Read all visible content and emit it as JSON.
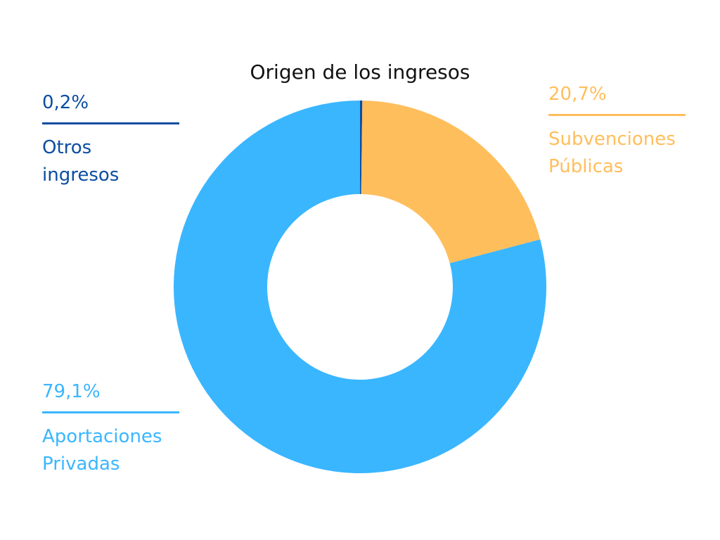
{
  "chart_data": {
    "type": "pie",
    "title": "Origen de los ingresos",
    "donut": true,
    "slices": [
      {
        "name": "Otros ingresos",
        "value": 0.2,
        "pct_label": "0,2%",
        "label_lines": [
          "Otros",
          "ingresos"
        ],
        "color": "#0D4DA1"
      },
      {
        "name": "Subvenciones Públicas",
        "value": 20.7,
        "pct_label": "20,7%",
        "label_lines": [
          "Subvenciones",
          "Públicas"
        ],
        "color": "#FFBE5C"
      },
      {
        "name": "Aportaciones Privadas",
        "value": 79.1,
        "pct_label": "79,1%",
        "label_lines": [
          "Aportaciones",
          "Privadas"
        ],
        "color": "#3AB6FF"
      }
    ]
  }
}
